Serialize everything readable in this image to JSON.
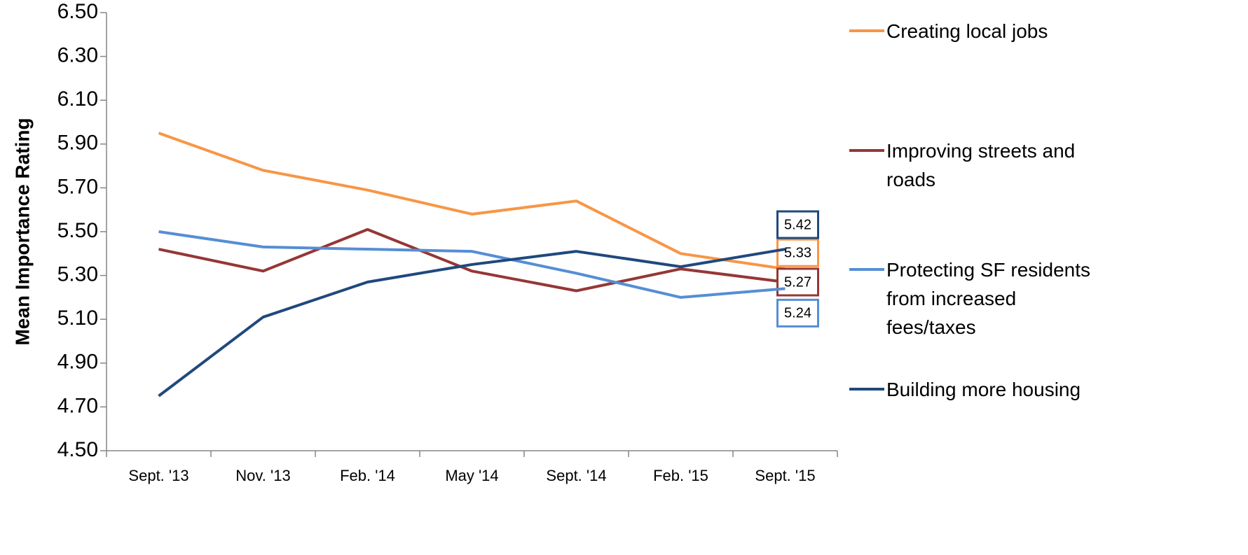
{
  "chart_data": {
    "type": "line",
    "y_label": "Mean Importance Rating",
    "categories": [
      "Sept. '13",
      "Nov. '13",
      "Feb. '14",
      "May '14",
      "Sept. '14",
      "Feb. '15",
      "Sept. '15"
    ],
    "series": [
      {
        "name": "Creating local jobs",
        "color": "#f79646",
        "values": [
          5.95,
          5.78,
          5.69,
          5.58,
          5.64,
          5.4,
          5.33
        ]
      },
      {
        "name": "Improving streets and roads",
        "color": "#953735",
        "values": [
          5.42,
          5.32,
          5.51,
          5.32,
          5.23,
          5.33,
          5.27
        ]
      },
      {
        "name": "Protecting SF residents from increased fees/taxes",
        "color": "#558ed5",
        "values": [
          5.5,
          5.43,
          5.42,
          5.41,
          5.31,
          5.2,
          5.24
        ]
      },
      {
        "name": "Building more housing",
        "color": "#1f497d",
        "values": [
          4.75,
          5.11,
          5.27,
          5.35,
          5.41,
          5.34,
          5.42
        ]
      }
    ],
    "ylim": [
      4.5,
      6.5
    ],
    "yticks": [
      {
        "value": 4.5,
        "label": "4.50"
      },
      {
        "value": 4.7,
        "label": "4.70"
      },
      {
        "value": 4.9,
        "label": "4.90"
      },
      {
        "value": 5.1,
        "label": "5.10"
      },
      {
        "value": 5.3,
        "label": "5.30"
      },
      {
        "value": 5.5,
        "label": "5.50"
      },
      {
        "value": 5.7,
        "label": "5.70"
      },
      {
        "value": 5.9,
        "label": "5.90"
      },
      {
        "value": 6.1,
        "label": "6.10"
      },
      {
        "value": 6.3,
        "label": "6.30"
      },
      {
        "value": 6.5,
        "label": "6.50"
      }
    ],
    "grid": false,
    "legend": "right"
  }
}
